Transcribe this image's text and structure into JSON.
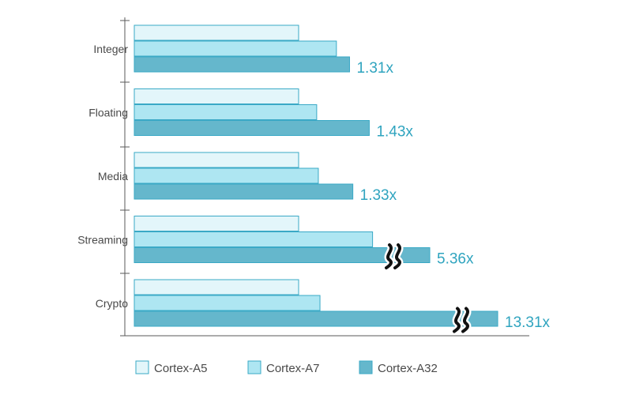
{
  "chart_data": {
    "type": "bar",
    "orientation": "horizontal",
    "categories": [
      "Integer",
      "Floating",
      "Media",
      "Streaming",
      "Crypto"
    ],
    "series": [
      {
        "name": "Cortex-A5",
        "color": "#e3f6fa",
        "values": [
          1.0,
          1.0,
          1.0,
          1.0,
          1.0
        ]
      },
      {
        "name": "Cortex-A7",
        "color": "#aee6f2",
        "values": [
          1.23,
          1.11,
          1.12,
          1.45,
          1.13
        ]
      },
      {
        "name": "Cortex-A32",
        "color": "#65b7cc",
        "values": [
          1.31,
          1.43,
          1.33,
          5.36,
          13.31
        ]
      }
    ],
    "data_labels": [
      "1.31x",
      "1.43x",
      "1.33x",
      "5.36x",
      "13.31x"
    ],
    "axis_breaks": [
      "Streaming",
      "Crypto"
    ],
    "title": "",
    "xlabel": "",
    "ylabel": "",
    "grid": false,
    "legend_position": "bottom",
    "stroke_color": "#3aa9c6",
    "label_color": "#2fa4bf"
  }
}
